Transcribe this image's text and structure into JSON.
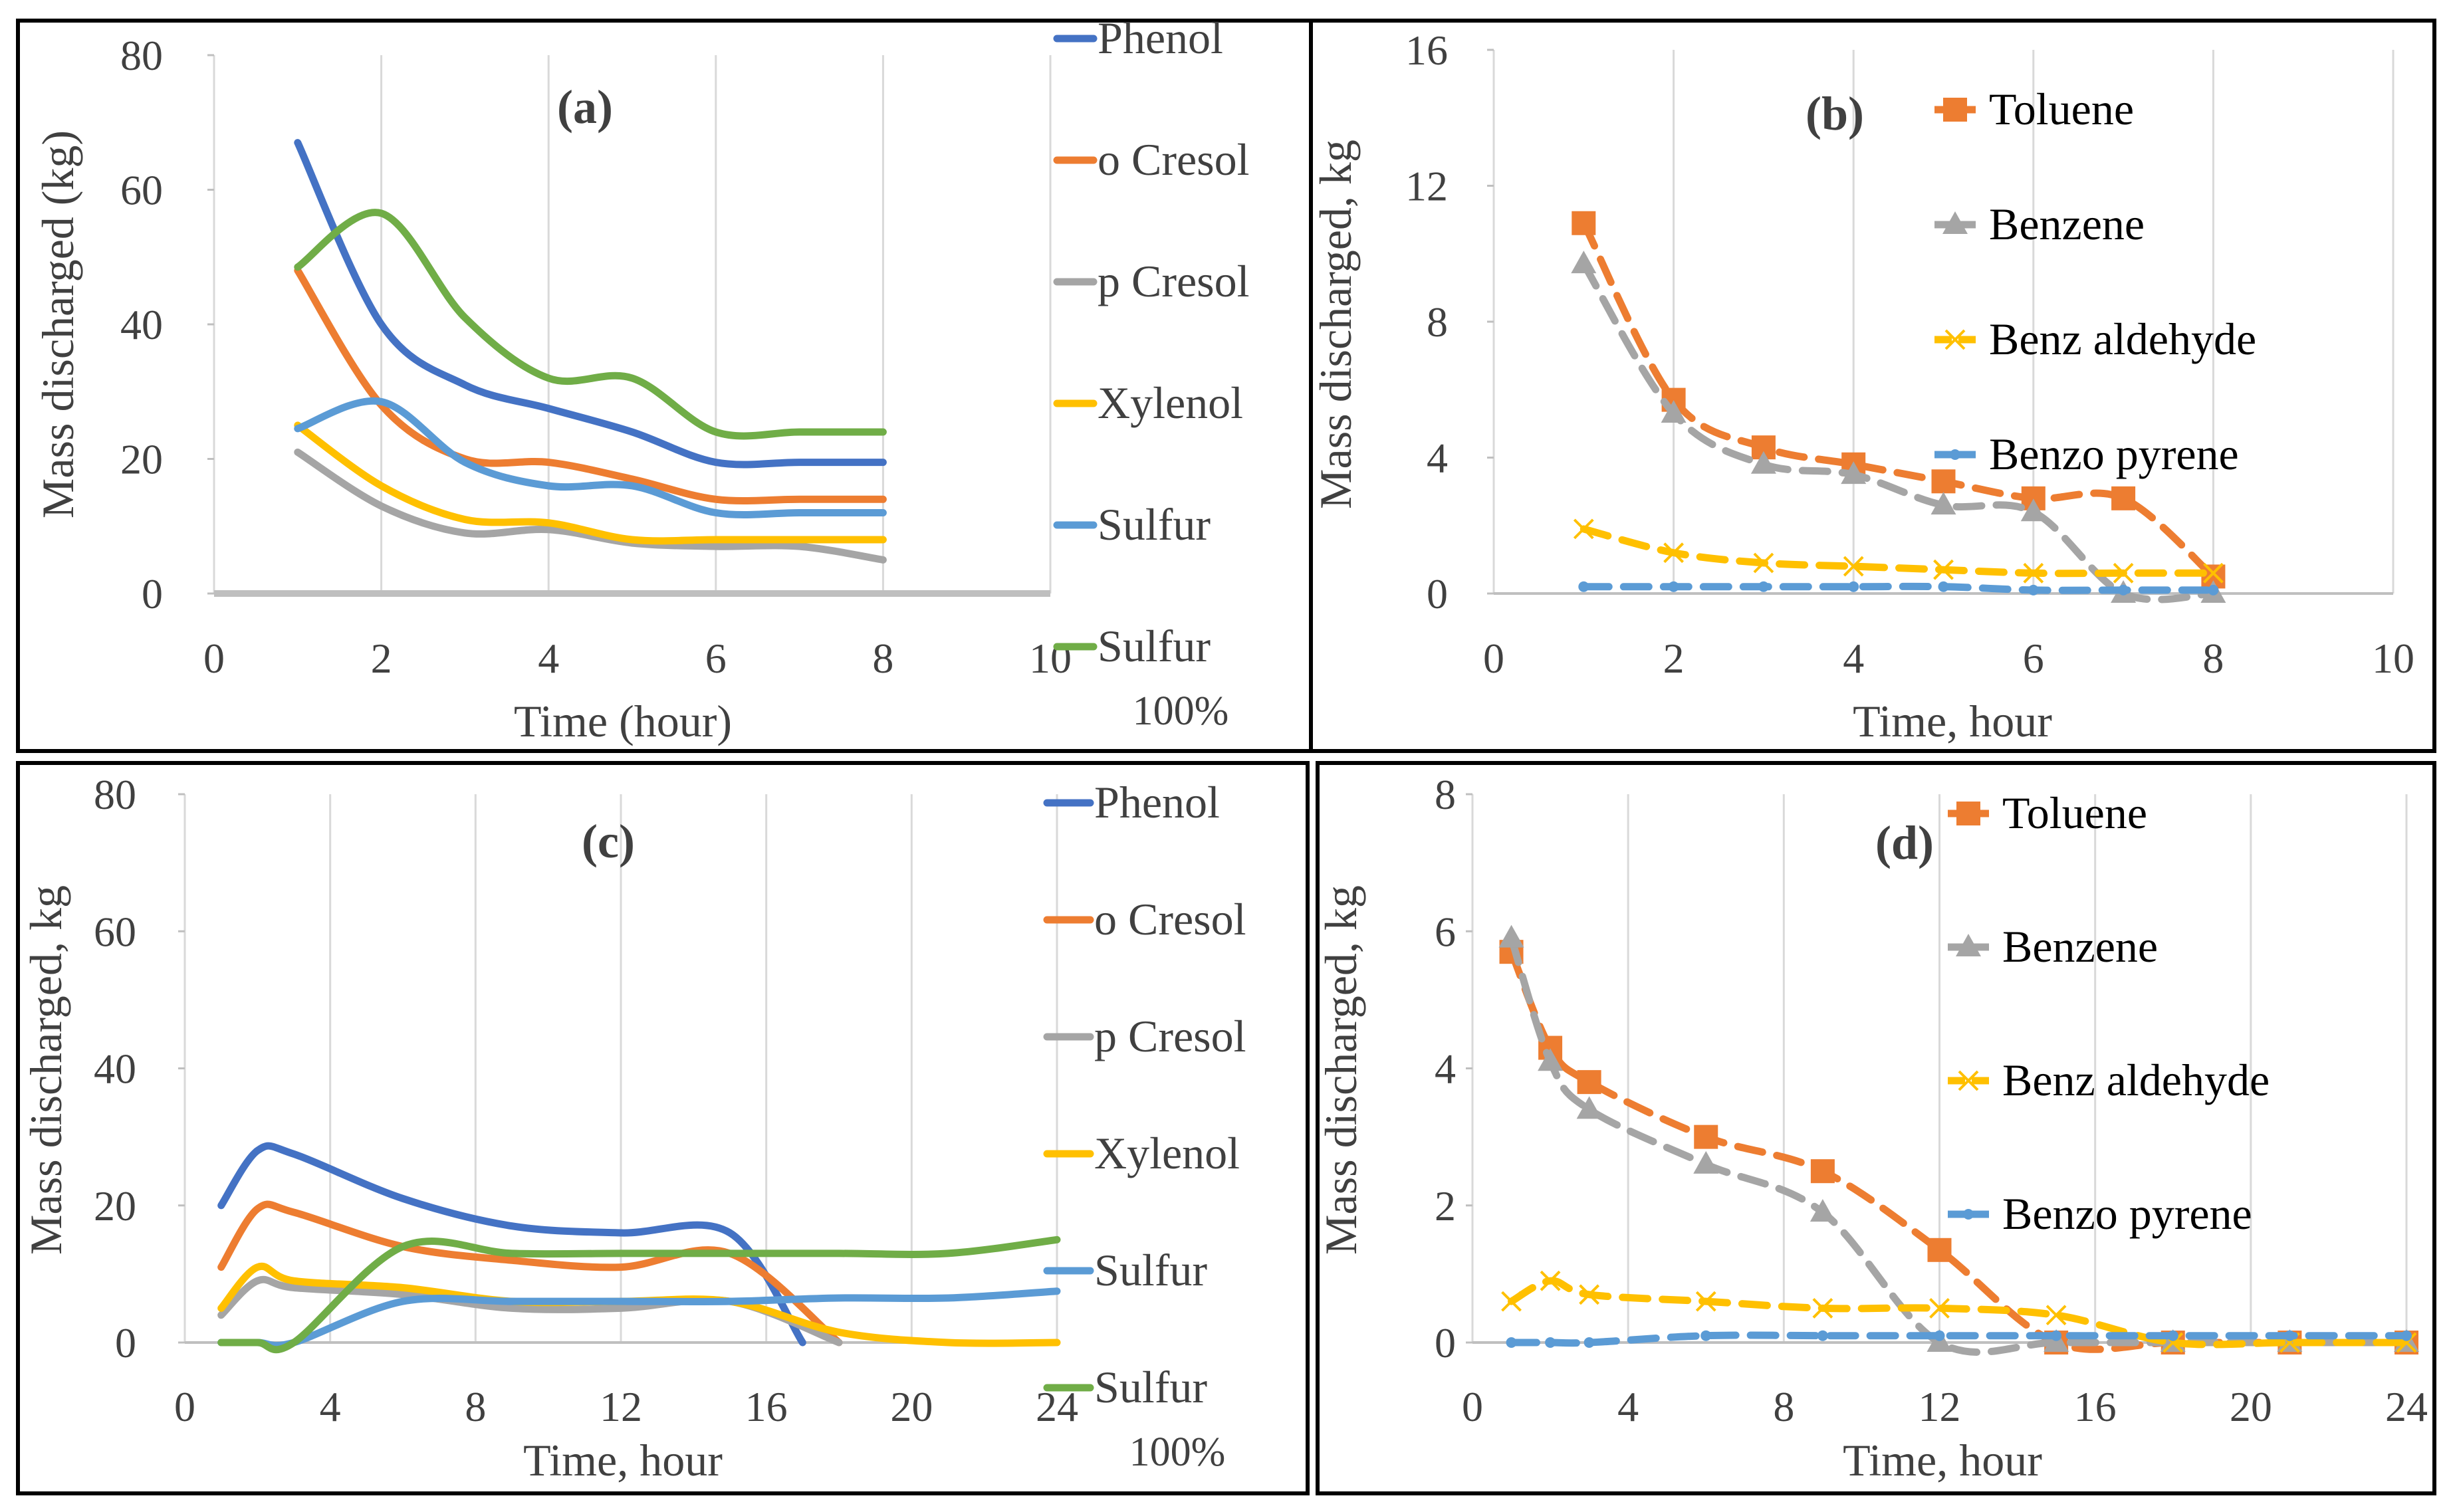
{
  "figure": {
    "colors": {
      "phenol": "#4472C4",
      "ocresol": "#ED7D31",
      "pcresol": "#A5A5A5",
      "xylenol": "#FFC000",
      "sulfur": "#5B9BD5",
      "sulfur100": "#70AD47",
      "grid": "#D9D9D9",
      "frame": "#000000"
    }
  },
  "chart_data": [
    {
      "id": "a",
      "type": "line",
      "panel_label": "(a)",
      "xlabel": "Time (hour)",
      "ylabel": "Mass discharged (kg)",
      "xlim": [
        0,
        10
      ],
      "ylim": [
        0,
        80
      ],
      "xticks": [
        "0",
        "2",
        "4",
        "6",
        "8",
        "10"
      ],
      "yticks": [
        "0",
        "20",
        "40",
        "60",
        "80"
      ],
      "grid": "vertical",
      "legend": "right",
      "x": [
        1,
        2,
        3,
        4,
        5,
        6,
        7,
        8
      ],
      "series": [
        {
          "name": "Phenol",
          "color": "#4472C4",
          "values": [
            67,
            40,
            31,
            27.5,
            24,
            19.5,
            19.5,
            19.5
          ]
        },
        {
          "name": "o Cresol",
          "color": "#ED7D31",
          "values": [
            48,
            28,
            20,
            19.5,
            17,
            14,
            14,
            14
          ]
        },
        {
          "name": "p Cresol",
          "color": "#A5A5A5",
          "values": [
            21,
            13,
            9,
            9.5,
            7.5,
            7,
            7,
            5
          ]
        },
        {
          "name": "Xylenol",
          "color": "#FFC000",
          "values": [
            25,
            16,
            11,
            10.5,
            8,
            8,
            8,
            8
          ]
        },
        {
          "name": "Sulfur",
          "color": "#5B9BD5",
          "values": [
            24.5,
            28.5,
            19.5,
            16,
            16,
            12,
            12,
            12
          ]
        },
        {
          "name": "Sulfur 100%",
          "color": "#70AD47",
          "values": [
            48.5,
            56.5,
            41,
            32,
            32,
            24,
            24,
            24
          ]
        }
      ],
      "baseline_label": "0"
    },
    {
      "id": "b",
      "type": "line",
      "panel_label": "(b)",
      "xlabel": "Time, hour",
      "ylabel": "Mass discharged, kg",
      "xlim": [
        0,
        10
      ],
      "ylim": [
        0,
        16
      ],
      "xticks": [
        "0",
        "2",
        "4",
        "6",
        "8",
        "10"
      ],
      "yticks": [
        "0",
        "4",
        "8",
        "12",
        "16"
      ],
      "grid": "vertical",
      "legend": "inside-top-right",
      "x": [
        1,
        2,
        3,
        4,
        5,
        6,
        7,
        8
      ],
      "series": [
        {
          "name": "Toluene",
          "color": "#ED7D31",
          "marker": "square",
          "values": [
            10.9,
            5.7,
            4.3,
            3.8,
            3.3,
            2.8,
            2.8,
            0.5
          ]
        },
        {
          "name": "Benzene",
          "color": "#A5A5A5",
          "marker": "triangle",
          "values": [
            9.7,
            5.3,
            3.8,
            3.5,
            2.6,
            2.4,
            0,
            0
          ]
        },
        {
          "name": "Benz aldehyde",
          "color": "#FFC000",
          "marker": "x",
          "values": [
            1.9,
            1.2,
            0.9,
            0.8,
            0.7,
            0.6,
            0.6,
            0.6
          ]
        },
        {
          "name": "Benzo pyrene",
          "color": "#5B9BD5",
          "marker": "dot",
          "values": [
            0.2,
            0.2,
            0.2,
            0.2,
            0.2,
            0.1,
            0.1,
            0.1
          ]
        }
      ]
    },
    {
      "id": "c",
      "type": "line",
      "panel_label": "(c)",
      "xlabel": "Time, hour",
      "ylabel": "Mass discharged, kg",
      "xlim": [
        0,
        24
      ],
      "ylim": [
        0,
        80
      ],
      "xticks": [
        "0",
        "4",
        "8",
        "12",
        "16",
        "20",
        "24"
      ],
      "yticks": [
        "0",
        "20",
        "40",
        "60",
        "80"
      ],
      "grid": "vertical",
      "legend": "right",
      "series": [
        {
          "name": "Phenol",
          "color": "#4472C4",
          "x": [
            1,
            2,
            3,
            6,
            9,
            12,
            15,
            17
          ],
          "values": [
            20,
            28,
            27.5,
            21,
            17,
            16,
            16,
            0
          ]
        },
        {
          "name": "o Cresol",
          "color": "#ED7D31",
          "x": [
            1,
            2,
            3,
            6,
            9,
            12,
            15,
            18
          ],
          "values": [
            11,
            19.5,
            19,
            14,
            12,
            11,
            13,
            0
          ]
        },
        {
          "name": "p Cresol",
          "color": "#A5A5A5",
          "x": [
            1,
            2,
            3,
            6,
            9,
            12,
            15,
            18
          ],
          "values": [
            4,
            9,
            8,
            7,
            5,
            5,
            6,
            0
          ]
        },
        {
          "name": "Xylenol",
          "color": "#FFC000",
          "x": [
            1,
            2,
            3,
            6,
            9,
            12,
            15,
            18,
            21,
            24
          ],
          "values": [
            5,
            11,
            9,
            8,
            6,
            6,
            6,
            1.5,
            0,
            0
          ]
        },
        {
          "name": "Sulfur",
          "color": "#5B9BD5",
          "x": [
            1,
            2,
            3,
            6,
            9,
            12,
            15,
            18,
            21,
            24
          ],
          "values": [
            0,
            0,
            0,
            6,
            6,
            6,
            6,
            6.5,
            6.5,
            7.5
          ]
        },
        {
          "name": "Sulfur 100%",
          "color": "#70AD47",
          "x": [
            1,
            2,
            3,
            6,
            9,
            12,
            15,
            18,
            21,
            24
          ],
          "values": [
            0,
            0,
            0,
            14,
            13,
            13,
            13,
            13,
            13,
            15
          ]
        }
      ]
    },
    {
      "id": "d",
      "type": "line",
      "panel_label": "(d)",
      "xlabel": "Time, hour",
      "ylabel": "Mass discharged, kg",
      "xlim": [
        0,
        24
      ],
      "ylim": [
        0,
        8
      ],
      "xticks": [
        "0",
        "4",
        "8",
        "12",
        "16",
        "20",
        "24"
      ],
      "yticks": [
        "0",
        "2",
        "4",
        "6",
        "8"
      ],
      "grid": "vertical",
      "legend": "inside-top-right",
      "series": [
        {
          "name": "Toluene",
          "color": "#ED7D31",
          "marker": "square",
          "x": [
            1,
            2,
            3,
            6,
            9,
            12,
            15,
            18,
            21,
            24
          ],
          "values": [
            5.7,
            4.3,
            3.8,
            3,
            2.5,
            1.35,
            0,
            0,
            0,
            0
          ]
        },
        {
          "name": "Benzene",
          "color": "#A5A5A5",
          "marker": "triangle",
          "x": [
            1,
            2,
            3,
            6,
            9,
            12,
            15,
            18,
            21,
            24
          ],
          "values": [
            5.9,
            4.1,
            3.4,
            2.6,
            1.9,
            0,
            0,
            0,
            0,
            0
          ]
        },
        {
          "name": "Benz aldehyde",
          "color": "#FFC000",
          "marker": "x",
          "x": [
            1,
            2,
            3,
            6,
            9,
            12,
            15,
            18,
            21,
            24
          ],
          "values": [
            0.6,
            0.9,
            0.7,
            0.6,
            0.5,
            0.5,
            0.4,
            0,
            0,
            0
          ]
        },
        {
          "name": "Benzo pyrene",
          "color": "#5B9BD5",
          "marker": "dot",
          "x": [
            1,
            2,
            3,
            6,
            9,
            12,
            15,
            18,
            21,
            24
          ],
          "values": [
            0,
            0,
            0,
            0.1,
            0.1,
            0.1,
            0.1,
            0.1,
            0.1,
            0.1
          ]
        }
      ]
    }
  ]
}
